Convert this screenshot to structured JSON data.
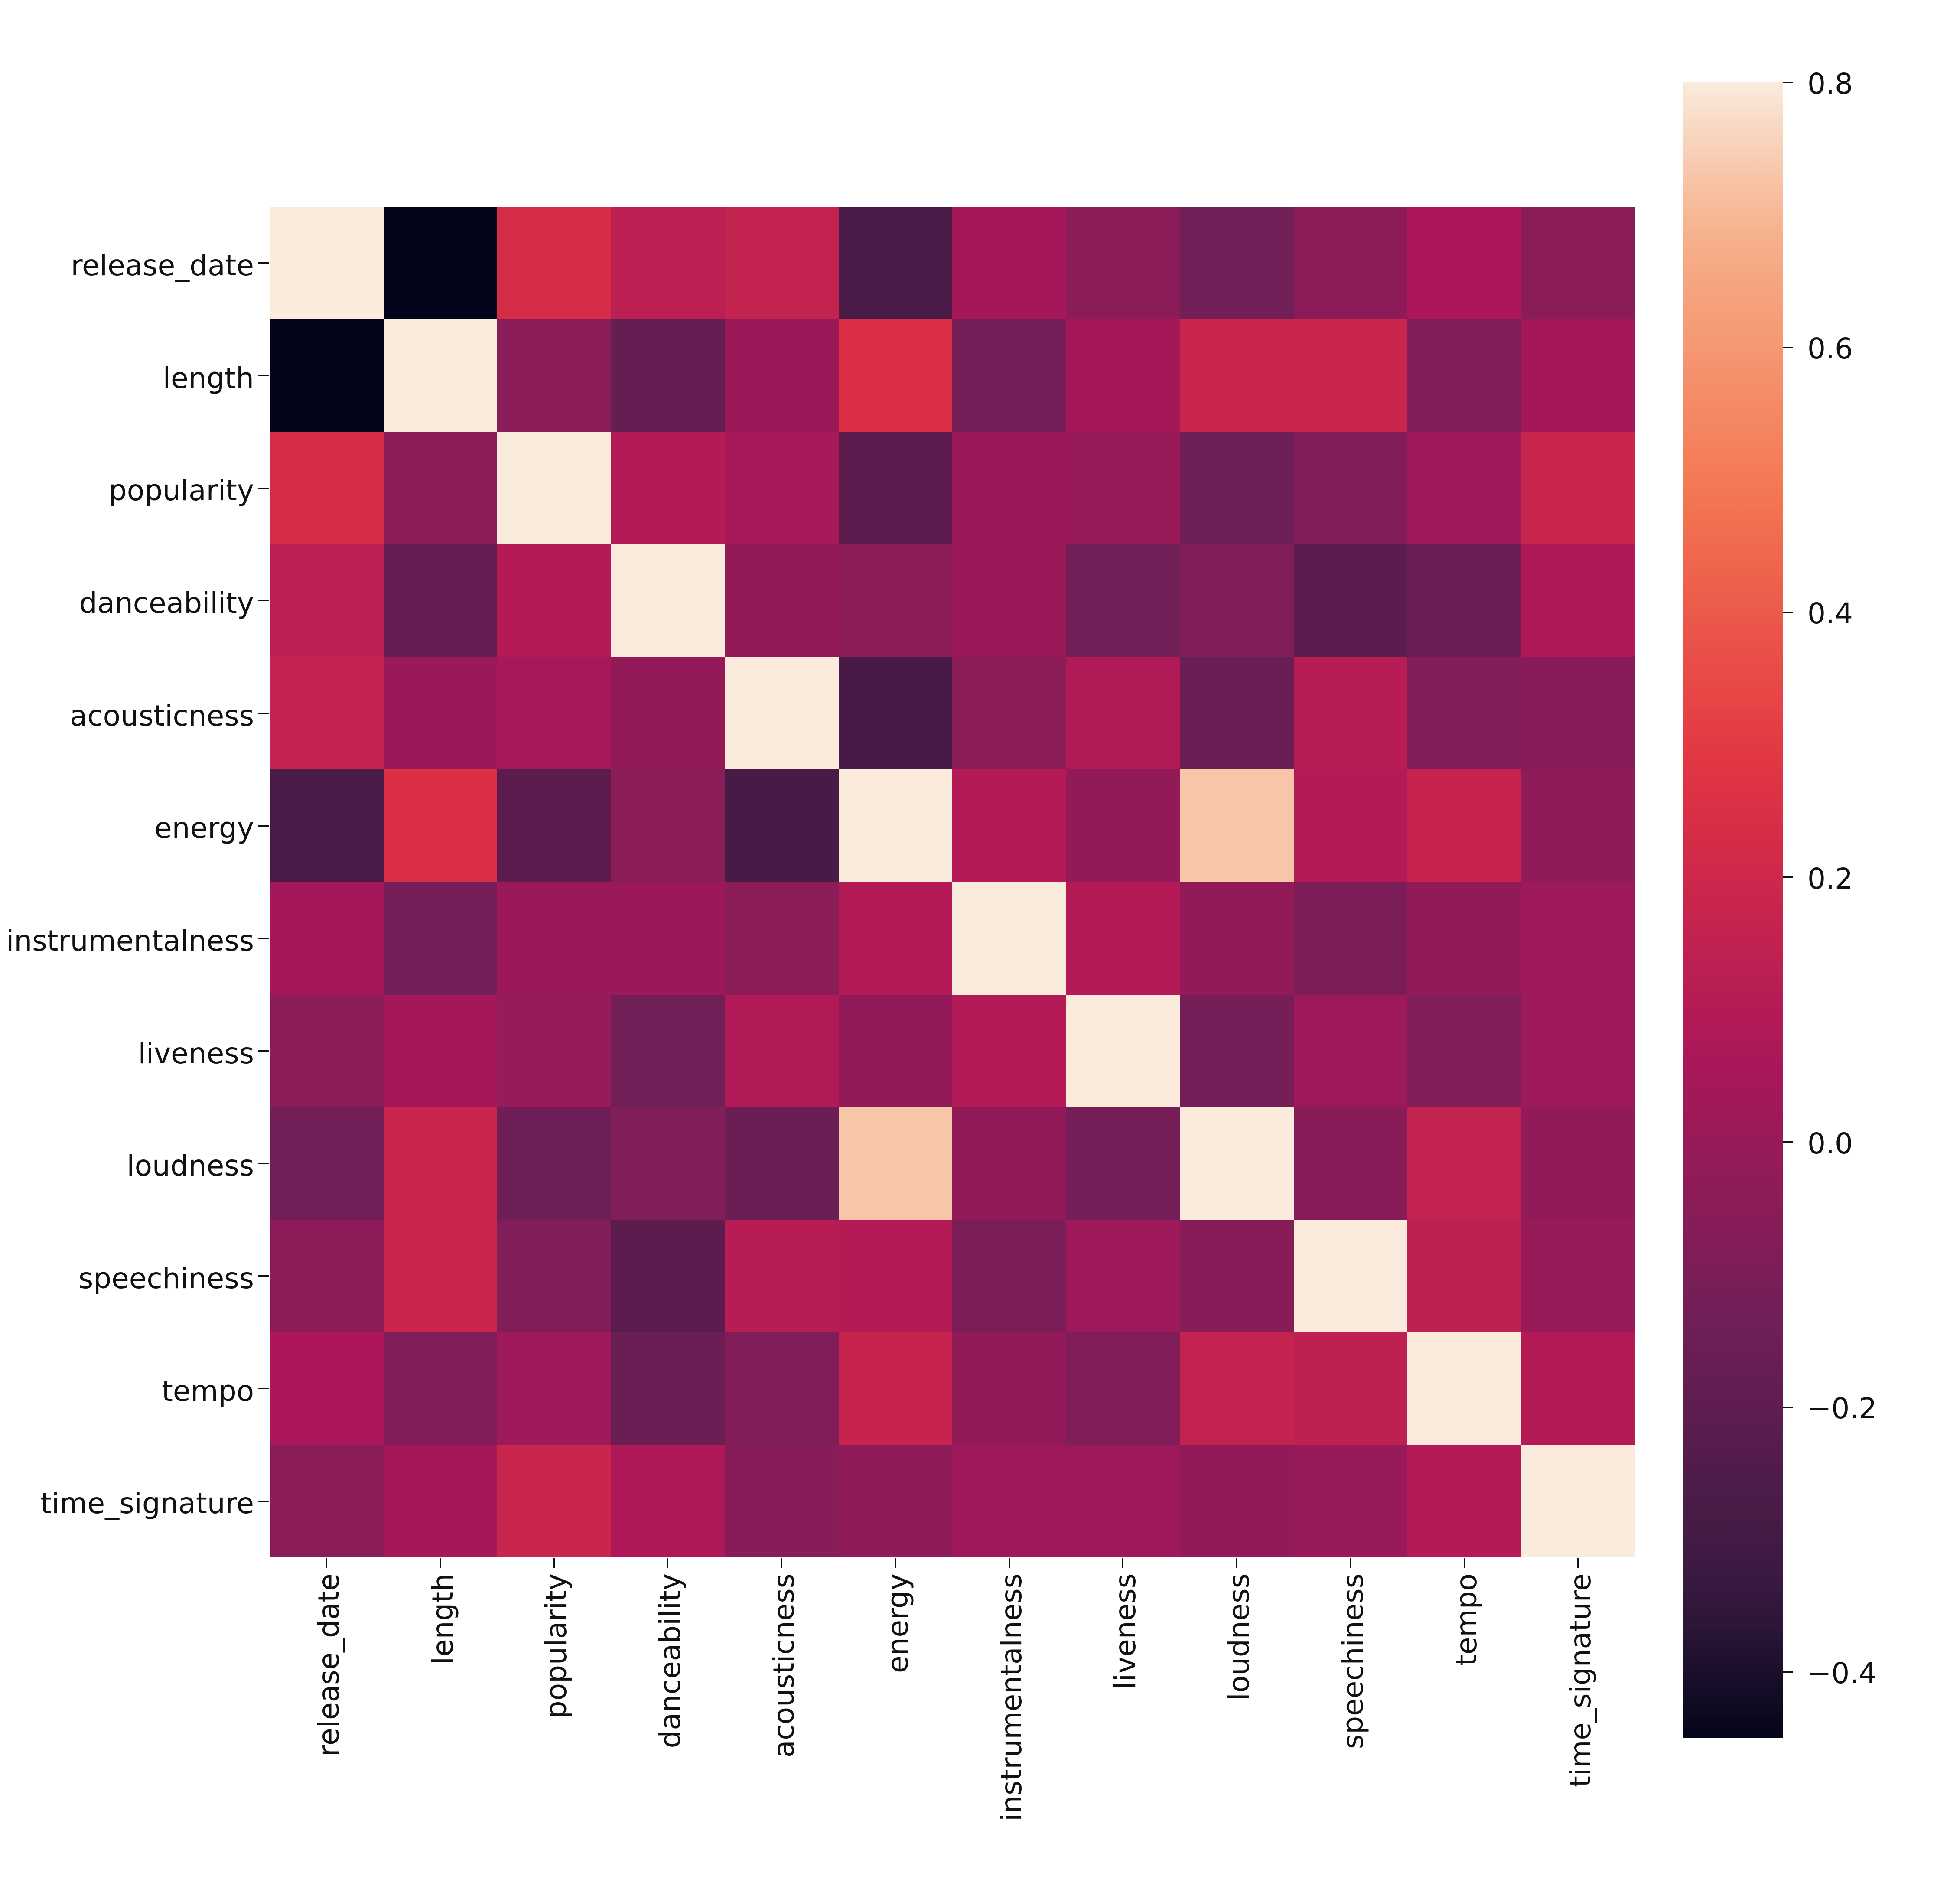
{
  "chart_data": {
    "type": "heatmap",
    "title": "",
    "xlabel": "",
    "ylabel": "",
    "grid": false,
    "legend_position": "right-colorbar",
    "variables": [
      "release_date",
      "length",
      "popularity",
      "danceability",
      "acousticness",
      "energy",
      "instrumentalness",
      "liveness",
      "loudness",
      "speechiness",
      "tempo",
      "time_signature"
    ],
    "matrix": [
      [
        1.0,
        -0.47,
        0.23,
        0.13,
        0.16,
        -0.27,
        0.04,
        -0.05,
        -0.13,
        -0.04,
        0.07,
        -0.05
      ],
      [
        -0.47,
        1.0,
        -0.05,
        -0.18,
        0.01,
        0.25,
        -0.12,
        0.04,
        0.18,
        0.18,
        -0.08,
        0.04
      ],
      [
        0.23,
        -0.05,
        1.0,
        0.1,
        0.05,
        -0.21,
        0.01,
        0.0,
        -0.14,
        -0.08,
        0.02,
        0.18
      ],
      [
        0.13,
        -0.18,
        0.1,
        1.0,
        -0.02,
        -0.05,
        0.01,
        -0.13,
        -0.08,
        -0.21,
        -0.16,
        0.08
      ],
      [
        0.16,
        0.01,
        0.05,
        -0.02,
        1.0,
        -0.28,
        -0.05,
        0.09,
        -0.16,
        0.11,
        -0.08,
        -0.06
      ],
      [
        -0.27,
        0.25,
        -0.21,
        -0.05,
        -0.28,
        1.0,
        0.1,
        -0.02,
        0.73,
        0.1,
        0.17,
        -0.03
      ],
      [
        0.04,
        -0.12,
        0.01,
        0.01,
        -0.05,
        0.1,
        1.0,
        0.1,
        -0.02,
        -0.1,
        -0.02,
        0.02
      ],
      [
        -0.05,
        0.04,
        0.0,
        -0.13,
        0.09,
        -0.02,
        0.1,
        1.0,
        -0.12,
        0.02,
        -0.08,
        0.02
      ],
      [
        -0.13,
        0.18,
        -0.14,
        -0.08,
        -0.16,
        0.73,
        -0.02,
        -0.12,
        1.0,
        -0.06,
        0.16,
        -0.02
      ],
      [
        -0.04,
        0.18,
        -0.08,
        -0.21,
        0.11,
        0.1,
        -0.1,
        0.02,
        -0.06,
        1.0,
        0.14,
        0.0
      ],
      [
        0.07,
        -0.08,
        0.02,
        -0.16,
        -0.08,
        0.17,
        -0.02,
        -0.08,
        0.16,
        0.14,
        1.0,
        0.1
      ],
      [
        -0.05,
        0.04,
        0.18,
        0.08,
        -0.06,
        -0.03,
        0.02,
        0.02,
        -0.02,
        0.0,
        0.1,
        1.0
      ]
    ],
    "vmin": -0.45,
    "vmax": 0.8,
    "colormap": {
      "name": "rocket",
      "stops": [
        {
          "t": 0.0,
          "color": "#03051A"
        },
        {
          "t": 0.083,
          "color": "#35193E"
        },
        {
          "t": 0.25,
          "color": "#701F57"
        },
        {
          "t": 0.417,
          "color": "#AD1759"
        },
        {
          "t": 0.583,
          "color": "#E13342"
        },
        {
          "t": 0.75,
          "color": "#F37651"
        },
        {
          "t": 0.917,
          "color": "#F6B48F"
        },
        {
          "t": 1.0,
          "color": "#FAEBDD"
        }
      ]
    },
    "colorbar_ticks": [
      {
        "label": "0.8",
        "value": 0.8
      },
      {
        "label": "0.6",
        "value": 0.6
      },
      {
        "label": "0.4",
        "value": 0.4
      },
      {
        "label": "0.2",
        "value": 0.2
      },
      {
        "label": "0.0",
        "value": 0.0
      },
      {
        "label": "−0.2",
        "value": -0.2
      },
      {
        "label": "−0.4",
        "value": -0.4
      }
    ]
  }
}
